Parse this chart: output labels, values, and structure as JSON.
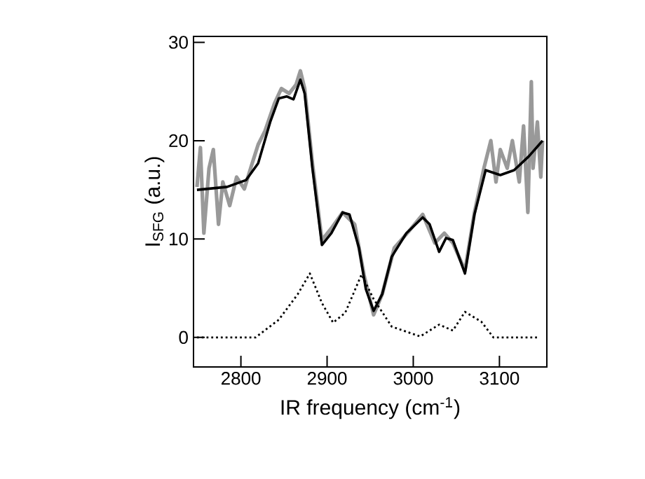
{
  "chart_data": {
    "type": "line",
    "xlabel": "IR frequency (cm$^{-1}$)",
    "ylabel": "I$_{SFG}$ (a.u.)",
    "xlim": [
      2745,
      3155
    ],
    "ylim": [
      -3,
      30.6
    ],
    "xticks": [
      2800,
      2900,
      3000,
      3100
    ],
    "yticks": [
      0,
      10,
      20,
      30
    ],
    "series": [
      {
        "color": "#999999",
        "line_style": "solid",
        "x": [
          2749,
          2753,
          2757,
          2763,
          2768,
          2774,
          2779,
          2787,
          2795,
          2804,
          2812,
          2820,
          2828,
          2839,
          2847,
          2856,
          2864,
          2869,
          2874,
          2883,
          2894,
          2905,
          2918,
          2932,
          2943,
          2954,
          2964,
          2978,
          2995,
          3011,
          3025,
          3036,
          3046,
          3060,
          3071,
          3082,
          3090,
          3096,
          3101,
          3109,
          3115,
          3123,
          3128,
          3133,
          3137,
          3139,
          3144,
          3148,
          3150
        ],
        "values": [
          15.3,
          19.3,
          10.6,
          17.2,
          19.1,
          11.5,
          15.8,
          13.4,
          16.3,
          15.1,
          17.4,
          19.6,
          21.0,
          23.8,
          25.3,
          24.8,
          25.7,
          27.1,
          25.3,
          17.7,
          9.9,
          11.1,
          12.7,
          11.5,
          6.3,
          2.3,
          4.4,
          9.1,
          10.8,
          12.5,
          9.6,
          10.6,
          9.6,
          6.8,
          12.7,
          17.2,
          20.0,
          15.8,
          19.1,
          17.2,
          20.0,
          15.8,
          21.5,
          12.7,
          26.0,
          17.2,
          21.9,
          16.3,
          20.0
        ]
      },
      {
        "color": "#000000",
        "line_style": "solid",
        "x": [
          2749,
          2784,
          2806,
          2820,
          2834,
          2844,
          2853,
          2861,
          2869,
          2874,
          2883,
          2894,
          2905,
          2918,
          2926,
          2937,
          2945,
          2954,
          2964,
          2975,
          2992,
          3011,
          3019,
          3030,
          3038,
          3046,
          3060,
          3071,
          3084,
          3101,
          3117,
          3134,
          3150
        ],
        "values": [
          15.0,
          15.3,
          16.0,
          17.7,
          21.9,
          24.3,
          24.5,
          24.2,
          26.2,
          24.8,
          17.2,
          9.4,
          10.6,
          12.7,
          12.5,
          9.1,
          4.9,
          2.7,
          4.4,
          8.2,
          10.6,
          12.2,
          11.5,
          8.7,
          10.1,
          9.9,
          6.5,
          12.5,
          17.0,
          16.5,
          17.0,
          18.4,
          20.0
        ]
      },
      {
        "color": "#000000",
        "line_style": "dotted",
        "x": [
          2749,
          2817,
          2844,
          2866,
          2880,
          2894,
          2907,
          2921,
          2940,
          2954,
          2975,
          3008,
          3030,
          3046,
          3060,
          3079,
          3093,
          3145
        ],
        "values": [
          0,
          0,
          1.8,
          4.4,
          6.5,
          3.5,
          1.5,
          2.5,
          6.4,
          3.9,
          1.1,
          0.1,
          1.3,
          0.7,
          2.6,
          1.6,
          0,
          0
        ]
      }
    ]
  }
}
